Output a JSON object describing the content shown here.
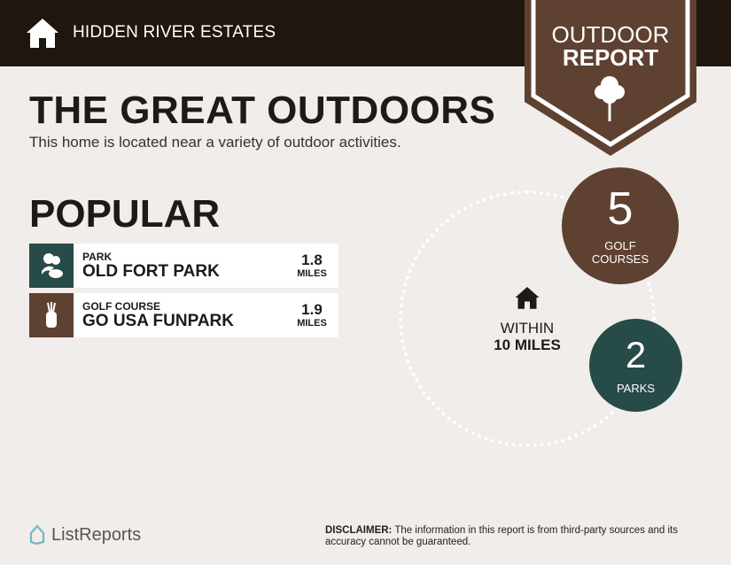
{
  "header": {
    "brand": "HIDDEN RIVER ESTATES",
    "brand_icon": "home-icon",
    "banner_line1": "OUTDOOR",
    "banner_line2": "REPORT",
    "banner_icon": "tree-icon"
  },
  "main": {
    "title": "THE GREAT OUTDOORS",
    "subtitle": "This home is located near a variety of outdoor activities.",
    "popular_title": "POPULAR",
    "popular": [
      {
        "category": "PARK",
        "name": "OLD FORT PARK",
        "distance": "1.8",
        "unit": "MILES",
        "icon": "park-icon",
        "color": "#264b48"
      },
      {
        "category": "GOLF COURSE",
        "name": "GO USA FUNPARK",
        "distance": "1.9",
        "unit": "MILES",
        "icon": "golf-bag-icon",
        "color": "#5e4130"
      }
    ]
  },
  "summary": {
    "within_line1": "WITHIN",
    "within_line2": "10 MILES",
    "golf": {
      "count": "5",
      "label1": "GOLF",
      "label2": "COURSES",
      "color": "#5e4130"
    },
    "parks": {
      "count": "2",
      "label": "PARKS",
      "color": "#264b48"
    }
  },
  "footer": {
    "logo": "ListReports",
    "disclaimer_label": "DISCLAIMER:",
    "disclaimer": " The information in this report is from third-party sources and its accuracy cannot be guaranteed."
  }
}
